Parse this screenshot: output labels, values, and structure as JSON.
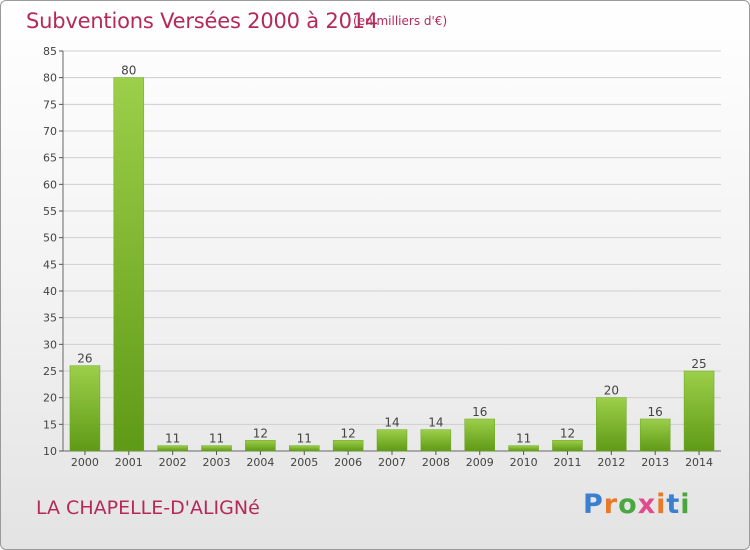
{
  "header": {
    "title": "Subventions Versées 2000 à 2014",
    "unit_note": "(en milliers d'€)"
  },
  "footer": {
    "commune": "LA CHAPELLE-D'ALIGNé",
    "brand": "Proxiti"
  },
  "colors": {
    "title": "#b5295a",
    "bar_light": "#9ccf4a",
    "bar_dark": "#5f9a16",
    "grid": "#cfcfcf",
    "brand_letters": [
      "#3a7fd0",
      "#e8782a",
      "#4aa640",
      "#e24a8c",
      "#e8782a",
      "#3a7fd0",
      "#4aa640"
    ]
  },
  "chart_data": {
    "type": "bar",
    "title": "Subventions Versées 2000 à 2014",
    "subtitle": "(en milliers d'€)",
    "xlabel": "",
    "ylabel": "",
    "categories": [
      "2000",
      "2001",
      "2002",
      "2003",
      "2004",
      "2005",
      "2006",
      "2007",
      "2008",
      "2009",
      "2010",
      "2011",
      "2012",
      "2013",
      "2014"
    ],
    "values": [
      26,
      80,
      11,
      11,
      12,
      11,
      12,
      14,
      14,
      16,
      11,
      12,
      20,
      16,
      25
    ],
    "ylim": [
      10,
      85
    ],
    "yticks": [
      10,
      15,
      20,
      25,
      30,
      35,
      40,
      45,
      50,
      55,
      60,
      65,
      70,
      75,
      80,
      85
    ],
    "grid": true,
    "legend": "none"
  }
}
